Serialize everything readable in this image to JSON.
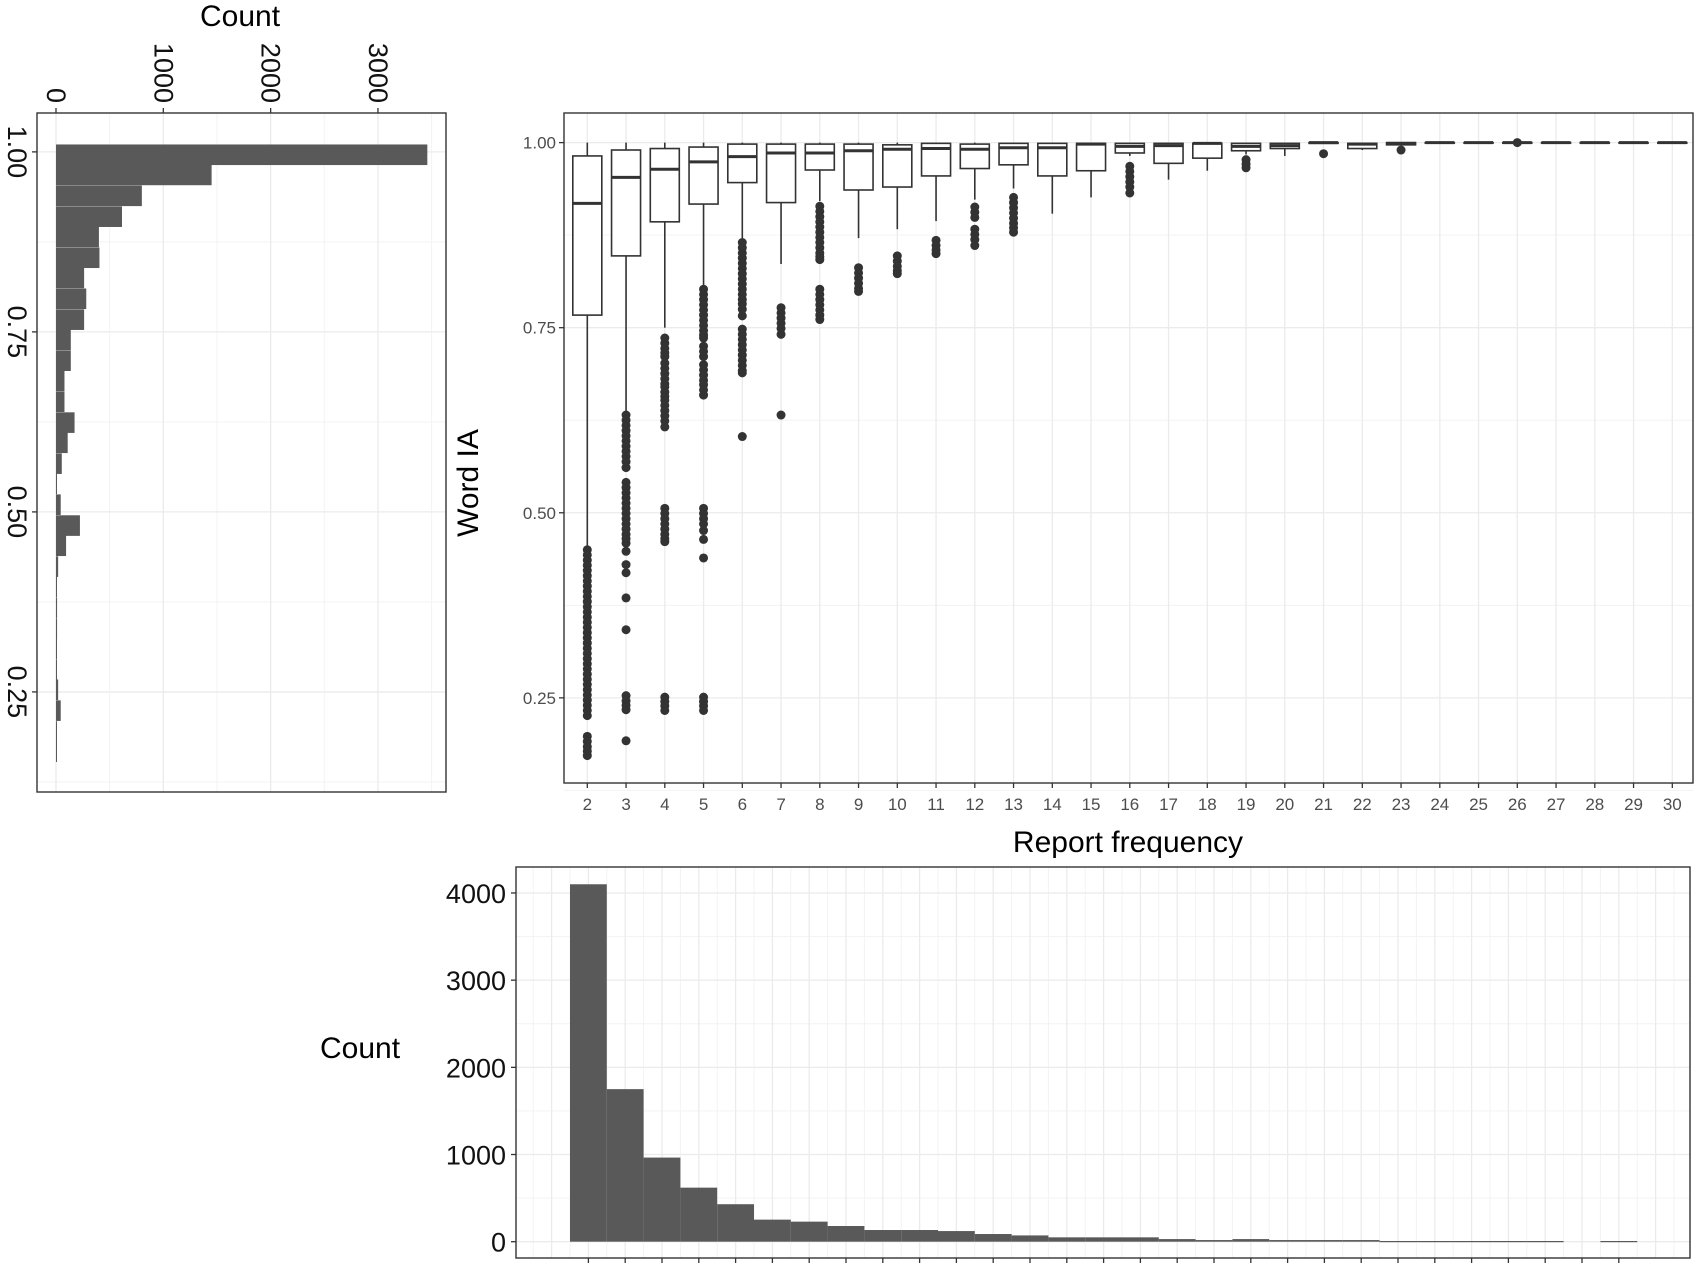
{
  "chart_data": [
    {
      "type": "bar",
      "orientation": "horizontal",
      "xlabel": "Count",
      "ylabel": "",
      "x_ticks": [
        "0",
        "1000",
        "2000",
        "3000"
      ],
      "y_ticks": [
        "0.25",
        "0.50",
        "0.75",
        "1.00"
      ],
      "xlim": [
        -177,
        3634
      ],
      "ylim": [
        0.111,
        1.054
      ],
      "grid": true,
      "bin_width": 0.0286,
      "bin_centers": [
        0.996,
        0.968,
        0.939,
        0.91,
        0.882,
        0.853,
        0.825,
        0.796,
        0.767,
        0.739,
        0.71,
        0.682,
        0.653,
        0.624,
        0.596,
        0.567,
        0.539,
        0.51,
        0.481,
        0.453,
        0.424,
        0.396,
        0.367,
        0.338,
        0.31,
        0.281,
        0.253,
        0.224,
        0.195,
        0.167
      ],
      "values": [
        3460,
        1450,
        800,
        615,
        400,
        405,
        262,
        282,
        262,
        138,
        138,
        79,
        79,
        173,
        109,
        54,
        5,
        44,
        223,
        94,
        20,
        3,
        10,
        10,
        2,
        2,
        20,
        44,
        3,
        3
      ],
      "color": "#595959"
    },
    {
      "type": "boxplot",
      "xlabel": "Report frequency",
      "ylabel": "Word IA",
      "categories": [
        "2",
        "3",
        "4",
        "5",
        "6",
        "7",
        "8",
        "9",
        "10",
        "11",
        "12",
        "13",
        "14",
        "15",
        "16",
        "17",
        "18",
        "19",
        "20",
        "21",
        "22",
        "23",
        "24",
        "25",
        "26",
        "27",
        "28",
        "29",
        "30"
      ],
      "y_ticks": [
        "0.25",
        "0.50",
        "0.75",
        "1.00"
      ],
      "ylim": [
        0.135,
        1.04
      ],
      "grid": true,
      "boxes": [
        {
          "whisker_low": 0.445,
          "q1": 0.767,
          "median": 0.918,
          "q3": 0.982,
          "whisker_high": 1.0,
          "outliers": [
            0.45,
            0.443,
            0.436,
            0.429,
            0.422,
            0.415,
            0.408,
            0.401,
            0.394,
            0.387,
            0.38,
            0.373,
            0.366,
            0.359,
            0.352,
            0.345,
            0.338,
            0.331,
            0.324,
            0.317,
            0.31,
            0.303,
            0.296,
            0.289,
            0.282,
            0.275,
            0.268,
            0.261,
            0.254,
            0.247,
            0.24,
            0.233,
            0.226,
            0.198,
            0.191,
            0.184,
            0.178,
            0.172
          ]
        },
        {
          "whisker_low": 0.635,
          "q1": 0.847,
          "median": 0.953,
          "q3": 0.99,
          "whisker_high": 1.0,
          "outliers": [
            0.632,
            0.625,
            0.618,
            0.611,
            0.604,
            0.597,
            0.59,
            0.583,
            0.576,
            0.569,
            0.561,
            0.541,
            0.534,
            0.527,
            0.52,
            0.513,
            0.506,
            0.499,
            0.492,
            0.485,
            0.478,
            0.471,
            0.465,
            0.459,
            0.448,
            0.43,
            0.419,
            0.385,
            0.342,
            0.253,
            0.246,
            0.24,
            0.234,
            0.192
          ]
        },
        {
          "whisker_low": 0.75,
          "q1": 0.893,
          "median": 0.964,
          "q3": 0.992,
          "whisker_high": 1.0,
          "outliers": [
            0.736,
            0.729,
            0.722,
            0.716,
            0.711,
            0.702,
            0.695,
            0.688,
            0.681,
            0.674,
            0.67,
            0.663,
            0.657,
            0.652,
            0.645,
            0.638,
            0.631,
            0.624,
            0.616,
            0.506,
            0.499,
            0.492,
            0.485,
            0.478,
            0.471,
            0.465,
            0.461,
            0.251,
            0.245,
            0.239,
            0.233
          ]
        },
        {
          "whisker_low": 0.804,
          "q1": 0.917,
          "median": 0.974,
          "q3": 0.994,
          "whisker_high": 1.0,
          "outliers": [
            0.802,
            0.795,
            0.788,
            0.781,
            0.774,
            0.767,
            0.76,
            0.753,
            0.746,
            0.74,
            0.736,
            0.725,
            0.718,
            0.711,
            0.7,
            0.693,
            0.686,
            0.679,
            0.673,
            0.666,
            0.659,
            0.506,
            0.499,
            0.492,
            0.485,
            0.476,
            0.464,
            0.439,
            0.251,
            0.245,
            0.239,
            0.233
          ]
        },
        {
          "whisker_low": 0.871,
          "q1": 0.946,
          "median": 0.981,
          "q3": 0.998,
          "whisker_high": 1.0,
          "outliers": [
            0.865,
            0.858,
            0.851,
            0.844,
            0.837,
            0.83,
            0.823,
            0.816,
            0.809,
            0.802,
            0.795,
            0.788,
            0.782,
            0.775,
            0.766,
            0.748,
            0.741,
            0.734,
            0.727,
            0.72,
            0.713,
            0.706,
            0.699,
            0.692,
            0.689,
            0.603
          ]
        },
        {
          "whisker_low": 0.836,
          "q1": 0.919,
          "median": 0.986,
          "q3": 0.998,
          "whisker_high": 1.0,
          "outliers": [
            0.777,
            0.77,
            0.763,
            0.756,
            0.749,
            0.741,
            0.632
          ]
        },
        {
          "whisker_low": 0.921,
          "q1": 0.963,
          "median": 0.986,
          "q3": 0.998,
          "whisker_high": 1.0,
          "outliers": [
            0.914,
            0.907,
            0.9,
            0.893,
            0.886,
            0.879,
            0.872,
            0.865,
            0.858,
            0.851,
            0.846,
            0.842,
            0.802,
            0.795,
            0.788,
            0.781,
            0.774,
            0.767,
            0.761
          ]
        },
        {
          "whisker_low": 0.871,
          "q1": 0.936,
          "median": 0.989,
          "q3": 0.998,
          "whisker_high": 1.0,
          "outliers": [
            0.831,
            0.824,
            0.817,
            0.81,
            0.803,
            0.799
          ]
        },
        {
          "whisker_low": 0.883,
          "q1": 0.94,
          "median": 0.991,
          "q3": 0.997,
          "whisker_high": 1.0,
          "outliers": [
            0.847,
            0.84,
            0.833,
            0.827,
            0.823
          ]
        },
        {
          "whisker_low": 0.894,
          "q1": 0.955,
          "median": 0.992,
          "q3": 0.999,
          "whisker_high": 1.0,
          "outliers": [
            0.868,
            0.861,
            0.855,
            0.85
          ]
        },
        {
          "whisker_low": 0.923,
          "q1": 0.965,
          "median": 0.991,
          "q3": 0.998,
          "whisker_high": 1.0,
          "outliers": [
            0.913,
            0.906,
            0.899,
            0.883,
            0.876,
            0.869,
            0.861
          ]
        },
        {
          "whisker_low": 0.938,
          "q1": 0.97,
          "median": 0.993,
          "q3": 0.999,
          "whisker_high": 1.0,
          "outliers": [
            0.926,
            0.919,
            0.912,
            0.905,
            0.898,
            0.891,
            0.885,
            0.879
          ]
        },
        {
          "whisker_low": 0.904,
          "q1": 0.955,
          "median": 0.993,
          "q3": 0.999,
          "whisker_high": 1.0,
          "outliers": []
        },
        {
          "whisker_low": 0.926,
          "q1": 0.962,
          "median": 0.998,
          "q3": 0.999,
          "whisker_high": 1.0,
          "outliers": []
        },
        {
          "whisker_low": 0.982,
          "q1": 0.986,
          "median": 0.995,
          "q3": 0.999,
          "whisker_high": 1.0,
          "outliers": [
            0.968,
            0.961,
            0.954,
            0.947,
            0.94,
            0.932
          ]
        },
        {
          "whisker_low": 0.95,
          "q1": 0.972,
          "median": 0.996,
          "q3": 0.999,
          "whisker_high": 1.0,
          "outliers": []
        },
        {
          "whisker_low": 0.962,
          "q1": 0.979,
          "median": 0.999,
          "q3": 0.999,
          "whisker_high": 1.0,
          "outliers": []
        },
        {
          "whisker_low": 0.984,
          "q1": 0.989,
          "median": 0.995,
          "q3": 0.999,
          "whisker_high": 1.0,
          "outliers": [
            0.977,
            0.971,
            0.966
          ]
        },
        {
          "whisker_low": 0.982,
          "q1": 0.992,
          "median": 0.996,
          "q3": 0.999,
          "whisker_high": 1.0,
          "outliers": []
        },
        {
          "whisker_low": 0.999,
          "q1": 0.999,
          "median": 1.0,
          "q3": 1.0,
          "whisker_high": 1.0,
          "outliers": [
            0.985
          ]
        },
        {
          "whisker_low": 0.99,
          "q1": 0.992,
          "median": 0.998,
          "q3": 0.999,
          "whisker_high": 1.0,
          "outliers": []
        },
        {
          "whisker_low": 0.997,
          "q1": 0.997,
          "median": 0.999,
          "q3": 1.0,
          "whisker_high": 1.0,
          "outliers": [
            0.99
          ]
        },
        {
          "whisker_low": 1.0,
          "q1": 1.0,
          "median": 1.0,
          "q3": 1.0,
          "whisker_high": 1.0,
          "outliers": []
        },
        {
          "whisker_low": 1.0,
          "q1": 1.0,
          "median": 1.0,
          "q3": 1.0,
          "whisker_high": 1.0,
          "outliers": []
        },
        {
          "whisker_low": 1.0,
          "q1": 1.0,
          "median": 1.0,
          "q3": 1.0,
          "whisker_high": 1.0,
          "outliers": [
            1.0
          ]
        },
        {
          "whisker_low": 1.0,
          "q1": 1.0,
          "median": 1.0,
          "q3": 1.0,
          "whisker_high": 1.0,
          "outliers": []
        },
        {
          "whisker_low": 1.0,
          "q1": 1.0,
          "median": 1.0,
          "q3": 1.0,
          "whisker_high": 1.0,
          "outliers": []
        },
        {
          "whisker_low": 1.0,
          "q1": 1.0,
          "median": 1.0,
          "q3": 1.0,
          "whisker_high": 1.0,
          "outliers": []
        },
        {
          "whisker_low": 1.0,
          "q1": 1.0,
          "median": 1.0,
          "q3": 1.0,
          "whisker_high": 1.0,
          "outliers": []
        }
      ]
    },
    {
      "type": "bar",
      "xlabel": "",
      "ylabel": "Count",
      "x": [
        2,
        3,
        4,
        5,
        6,
        7,
        8,
        9,
        10,
        11,
        12,
        13,
        14,
        15,
        16,
        17,
        18,
        19,
        20,
        21,
        22,
        23,
        24,
        25,
        26,
        27,
        28,
        29,
        30
      ],
      "values": [
        4100,
        1750,
        965,
        620,
        430,
        253,
        230,
        180,
        134,
        134,
        122,
        88,
        72,
        50,
        50,
        50,
        30,
        19,
        30,
        19,
        19,
        19,
        8,
        8,
        8,
        8,
        8,
        0,
        8
      ],
      "y_ticks": [
        "0",
        "1000",
        "2000",
        "3000",
        "4000"
      ],
      "ylim": [
        -187,
        4298
      ],
      "grid": true,
      "color": "#595959"
    }
  ]
}
